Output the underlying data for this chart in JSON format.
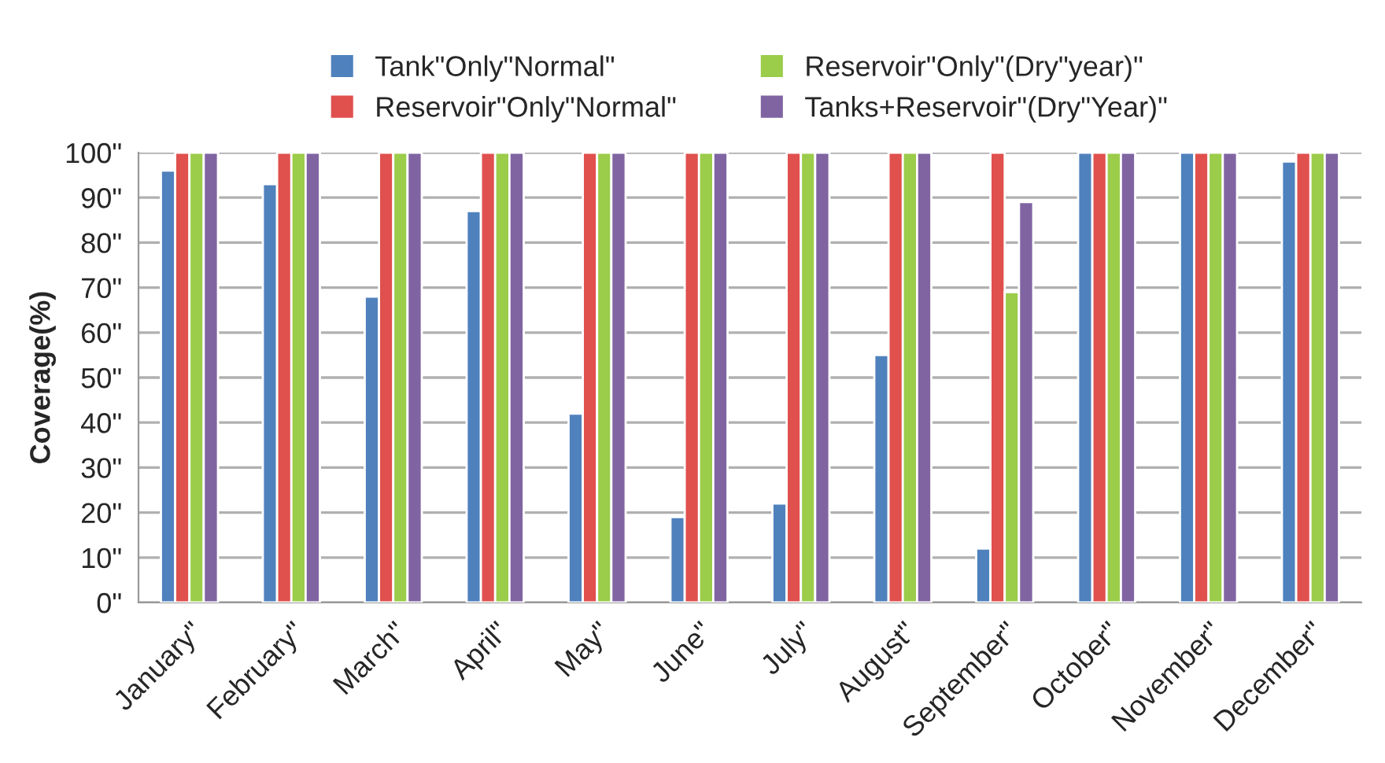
{
  "chart_data": {
    "type": "bar",
    "ylabel": "Coverage(%)",
    "categories": [
      "January\"",
      "February\"",
      "March\"",
      "April\"",
      "May\"",
      "June\"",
      "July\"",
      "August\"",
      "September\"",
      "October\"",
      "November\"",
      "December\""
    ],
    "series": [
      {
        "name": "Tank\"Only\"Normal\"",
        "color": "#4f81bd",
        "values": [
          96,
          93,
          68,
          87,
          42,
          19,
          22,
          55,
          12,
          100,
          100,
          98
        ]
      },
      {
        "name": "Reservoir\"Only\"Normal\"",
        "color": "#e0504d",
        "values": [
          100,
          100,
          100,
          100,
          100,
          100,
          100,
          100,
          100,
          100,
          100,
          100
        ]
      },
      {
        "name": "Reservoir\"Only\"(Dry\"year)\"",
        "color": "#9bcc4a",
        "values": [
          100,
          100,
          100,
          100,
          100,
          100,
          100,
          100,
          69,
          100,
          100,
          100
        ]
      },
      {
        "name": "Tanks+Reservoir\"(Dry\"Year)\"",
        "color": "#8064a2",
        "values": [
          100,
          100,
          100,
          100,
          100,
          100,
          100,
          100,
          89,
          100,
          100,
          100
        ]
      }
    ],
    "ylim": [
      0,
      100
    ],
    "yticks": [
      {
        "value": 0,
        "label": "0\""
      },
      {
        "value": 10,
        "label": "10\""
      },
      {
        "value": 20,
        "label": "20\""
      },
      {
        "value": 30,
        "label": "30\""
      },
      {
        "value": 40,
        "label": "40\""
      },
      {
        "value": 50,
        "label": "50\""
      },
      {
        "value": 60,
        "label": "60\""
      },
      {
        "value": 70,
        "label": "70\""
      },
      {
        "value": 80,
        "label": "80\""
      },
      {
        "value": 90,
        "label": "90\""
      },
      {
        "value": 100,
        "label": "100\""
      }
    ],
    "grid": "y",
    "legend": "top"
  }
}
